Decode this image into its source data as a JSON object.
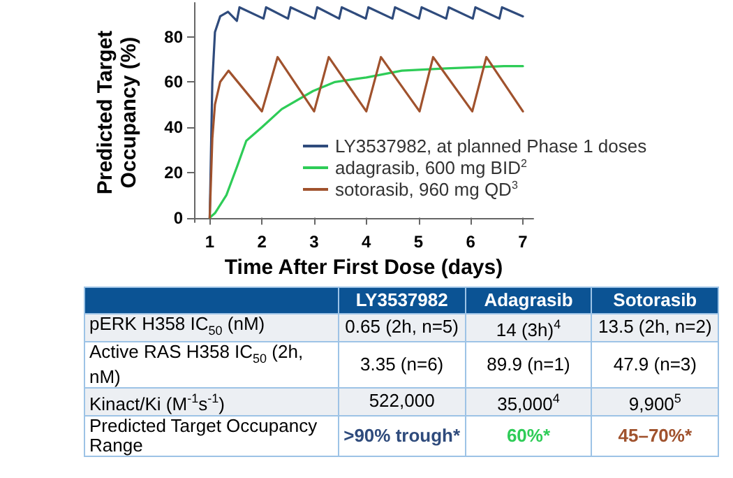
{
  "chart_data": [
    {
      "type": "line",
      "xlabel": "Time After First Dose (days)",
      "ylabel": "Predicted Target Occupancy (%)",
      "xlim": [
        0.7,
        7.2
      ],
      "xticks": [
        1,
        2,
        3,
        4,
        5,
        6,
        7
      ],
      "ylim": [
        -2,
        95
      ],
      "yticks": [
        0,
        20,
        40,
        60,
        80
      ],
      "grid": false,
      "legend": "bottom right",
      "marker": "none",
      "line_style": "solid",
      "series": [
        {
          "name": "LY3537982, at planned Phase 1 doses",
          "color": "#2f4b7c",
          "x": [
            1,
            1.05,
            1.1,
            1.2,
            1.35,
            1.52,
            1.57,
            2.03,
            2.08,
            2.5,
            2.55,
            3.01,
            3.06,
            3.48,
            3.53,
            3.99,
            4.04,
            4.5,
            4.55,
            5.01,
            5.06,
            5.53,
            5.58,
            6.04,
            6.09,
            6.55,
            6.6,
            7
          ],
          "values": [
            0,
            60,
            82,
            89,
            91,
            87,
            93,
            88,
            93,
            88,
            93,
            88,
            93,
            88,
            93,
            88,
            93,
            88,
            93,
            88,
            93,
            88,
            93,
            88,
            93,
            88,
            93,
            89
          ]
        },
        {
          "name": "adagrasib, 600 mg BID$^{2}$",
          "color": "#2ecc57",
          "x": [
            1,
            1.1,
            1.32,
            1.53,
            1.7,
            2.0,
            2.38,
            2.98,
            3.4,
            4.0,
            4.68,
            5.53,
            6.64,
            7
          ],
          "values": [
            0,
            2,
            10,
            23,
            34,
            40,
            48,
            56,
            60,
            62,
            65,
            66,
            67,
            67
          ]
        },
        {
          "name": "sotorasib, 960 mg QD$^{3}$",
          "color": "#a0522d",
          "x": [
            1,
            1.05,
            1.1,
            1.2,
            1.36,
            2.0,
            2.3,
            3.0,
            3.28,
            4.0,
            4.28,
            5.02,
            5.28,
            6.03,
            6.3,
            7
          ],
          "values": [
            0,
            35,
            50,
            60,
            65,
            47,
            71,
            47,
            71,
            47,
            71,
            47,
            71,
            47,
            71,
            47
          ]
        }
      ]
    },
    {
      "type": "other",
      "categories": [
        null,
        "LY3537982",
        "Adagrasib",
        "Sotorasib"
      ],
      "y_categories": [
        "pERK H358 IC$_{50}$ (nM)",
        "Active RAS H358 IC$_{50}$ (2h, nM)",
        "Kinact/Ki (M$^{-1}$s$^{-1}$)",
        "Predicted Target Occupancy Range"
      ],
      "cell_labels": [
        [
          "0.65 (2h, n=5)",
          "14 (3h)$^{4}$",
          "13.5 (2h, n=2)"
        ],
        [
          "3.35 (n=6)",
          "89.9 (n=1)",
          "47.9 (n=3)"
        ],
        [
          "522,000",
          "35,000$^{4}$",
          "9,900$^{5}$"
        ],
        [
          ">90% trough*",
          "60%*",
          "45–70%*"
        ]
      ]
    }
  ]
}
